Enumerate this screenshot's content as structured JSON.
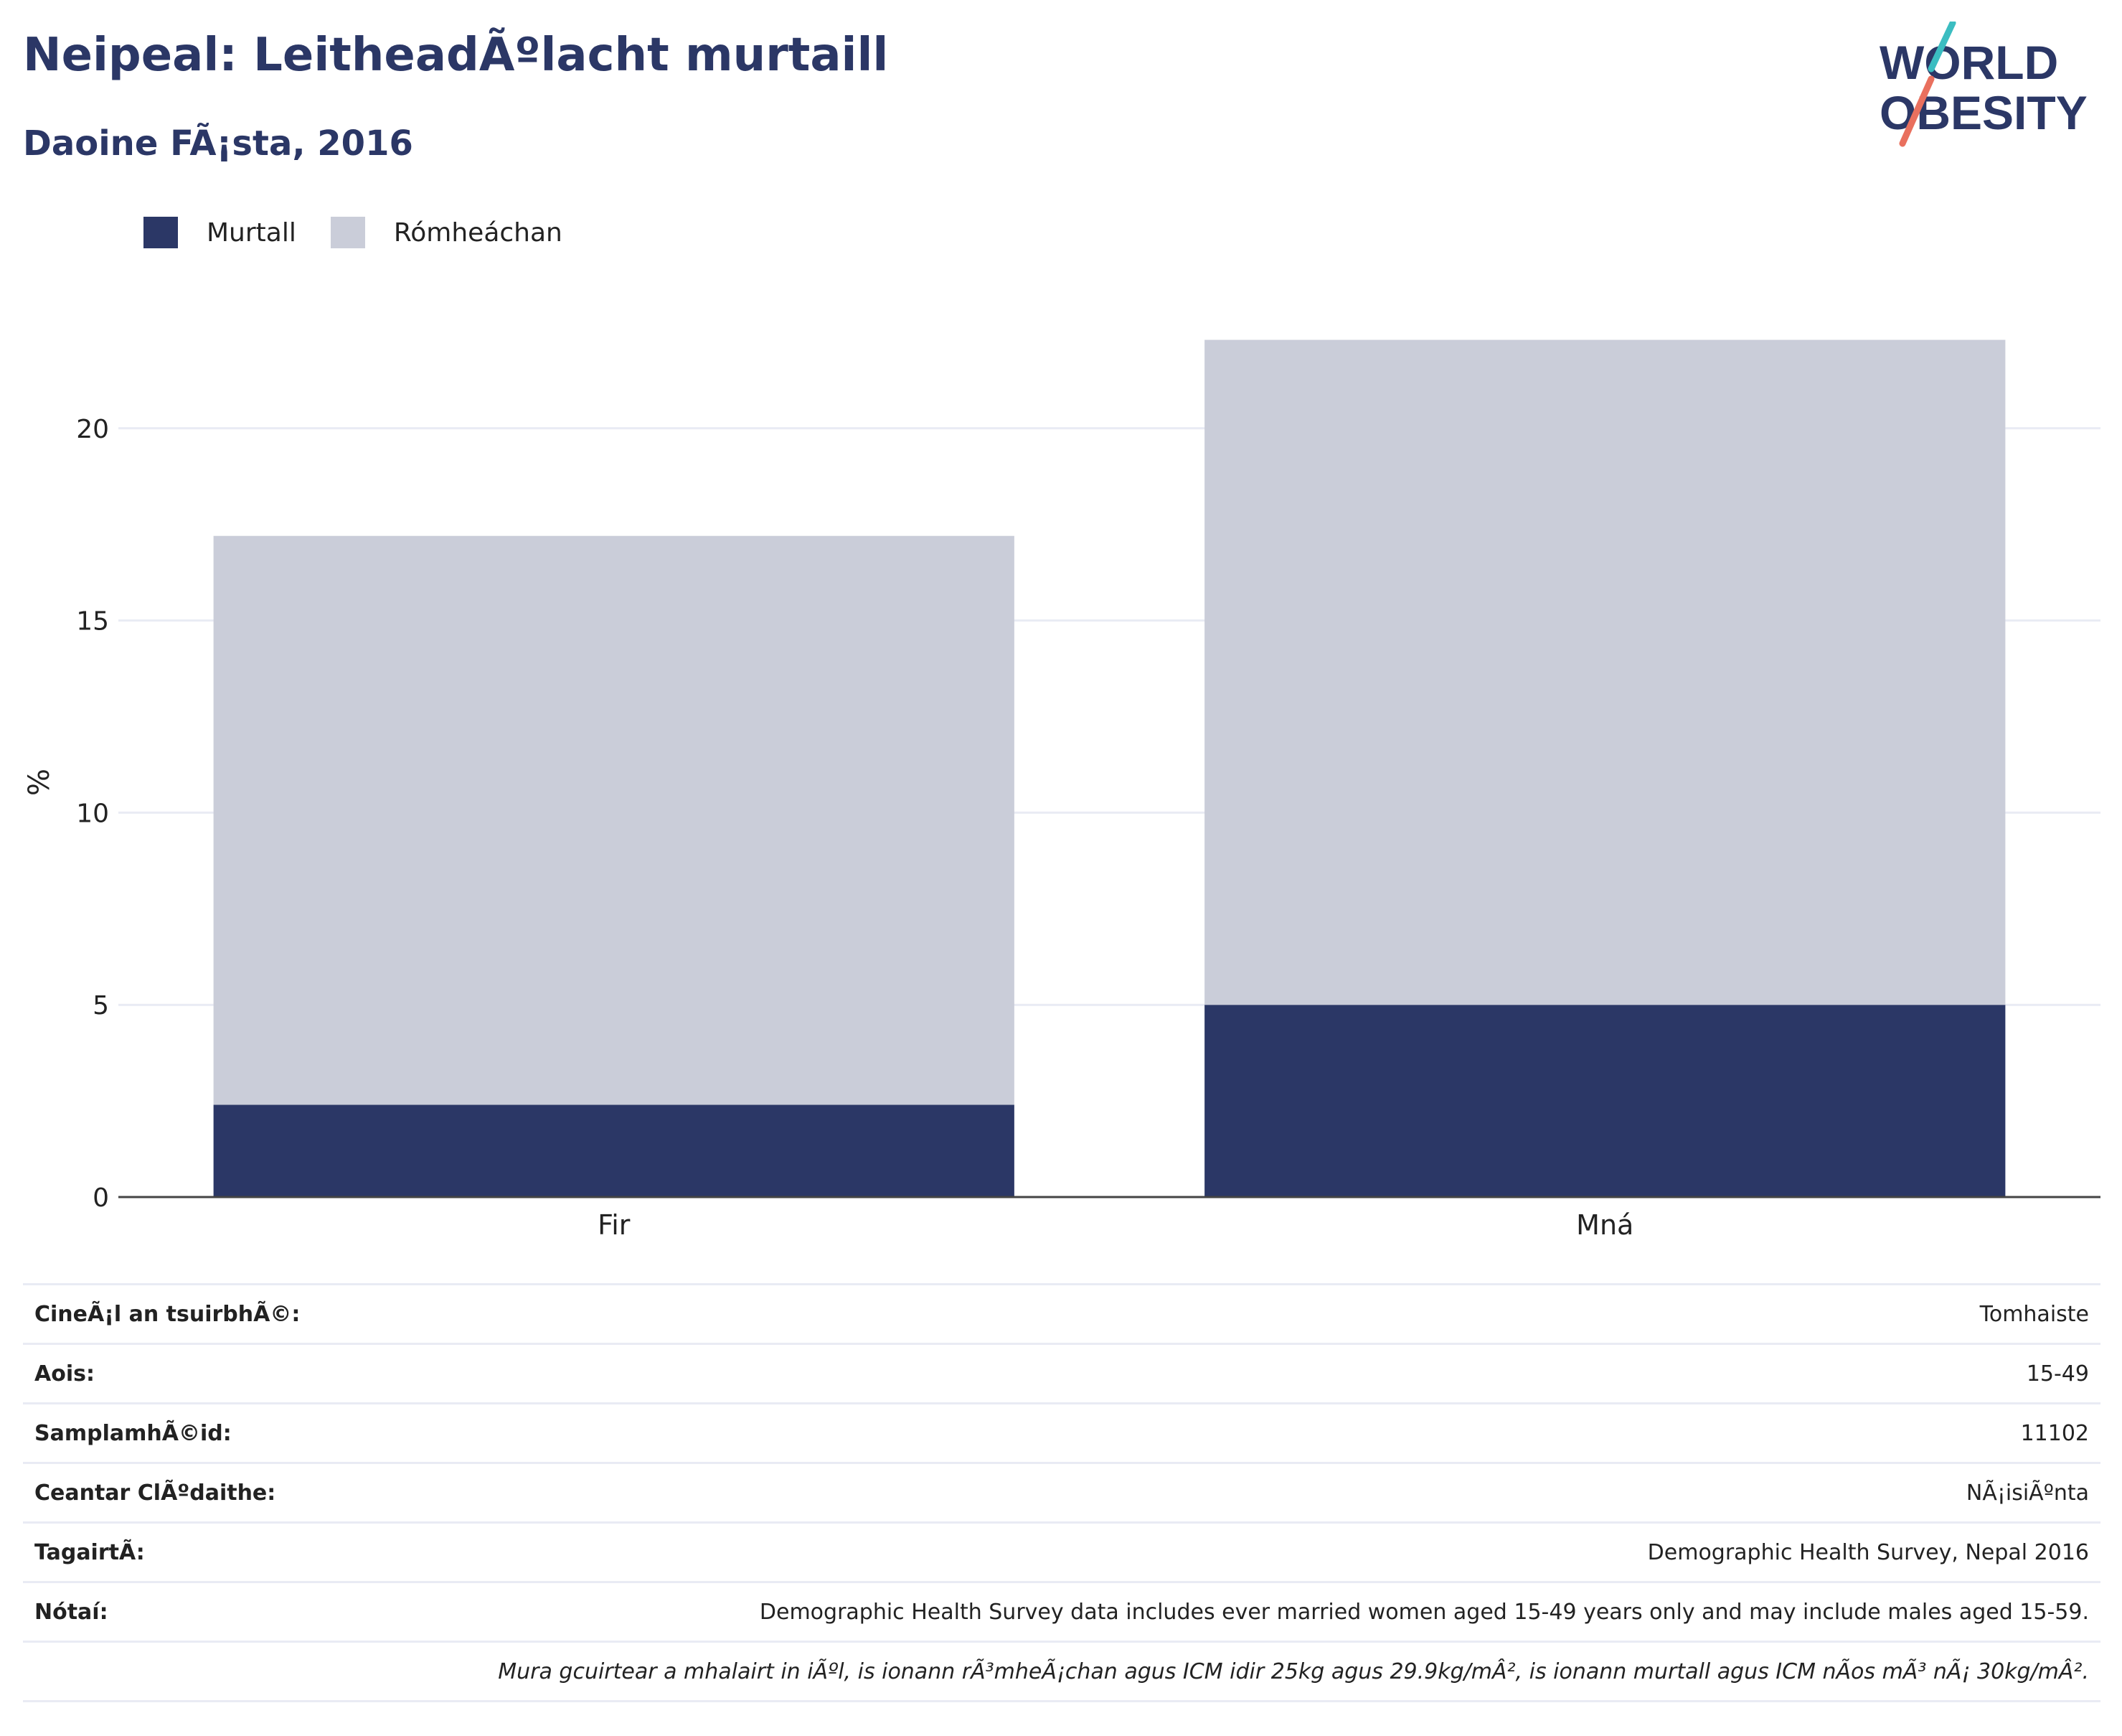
{
  "header": {
    "title": "Neipeal: LeitheadÃºlacht murtaill",
    "subtitle": "Daoine FÃ¡sta, 2016"
  },
  "logo": {
    "line1": "WORLD",
    "line2": "OBESITY",
    "icon": "world-obesity-logo"
  },
  "colors": {
    "obese": "#2b3766",
    "overweight": "#cacdd9",
    "brand": "#2b3766",
    "accent_teal": "#3bbdc1",
    "accent_coral": "#e9705e"
  },
  "chart_data": {
    "type": "bar",
    "stacked": true,
    "categories": [
      "Fir",
      "Mná"
    ],
    "series": [
      {
        "name": "Murtall",
        "values": [
          2.4,
          5.0
        ]
      },
      {
        "name": "Rómheáchan",
        "values": [
          14.8,
          17.3
        ]
      }
    ],
    "xlabel": "",
    "ylabel": "%",
    "ylim": [
      0,
      23.3
    ],
    "yticks": [
      0,
      5,
      10,
      15,
      20
    ],
    "grid": true,
    "legend": "top-left"
  },
  "info": {
    "rows": [
      {
        "label": "CineÃ¡l an tsuirbhÃ©:",
        "value": "Tomhaiste"
      },
      {
        "label": "Aois:",
        "value": "15-49"
      },
      {
        "label": "SamplamhÃ©id:",
        "value": "11102"
      },
      {
        "label": "Ceantar ClÃºdaithe:",
        "value": "NÃ¡isiÃºnta"
      },
      {
        "label": "TagairtÃ:",
        "value": "Demographic Health Survey, Nepal 2016"
      },
      {
        "label": "Nótaí:",
        "value": "Demographic Health Survey data includes ever married women aged 15-49 years only and may include males aged 15-59."
      }
    ],
    "footnote": "Mura gcuirtear a mhalairt in iÃºl, is ionann rÃ³mheÃ¡chan agus ICM idir 25kg agus 29.9kg/mÂ², is ionann murtall agus ICM nÃos mÃ³ nÃ¡ 30kg/mÂ²."
  }
}
